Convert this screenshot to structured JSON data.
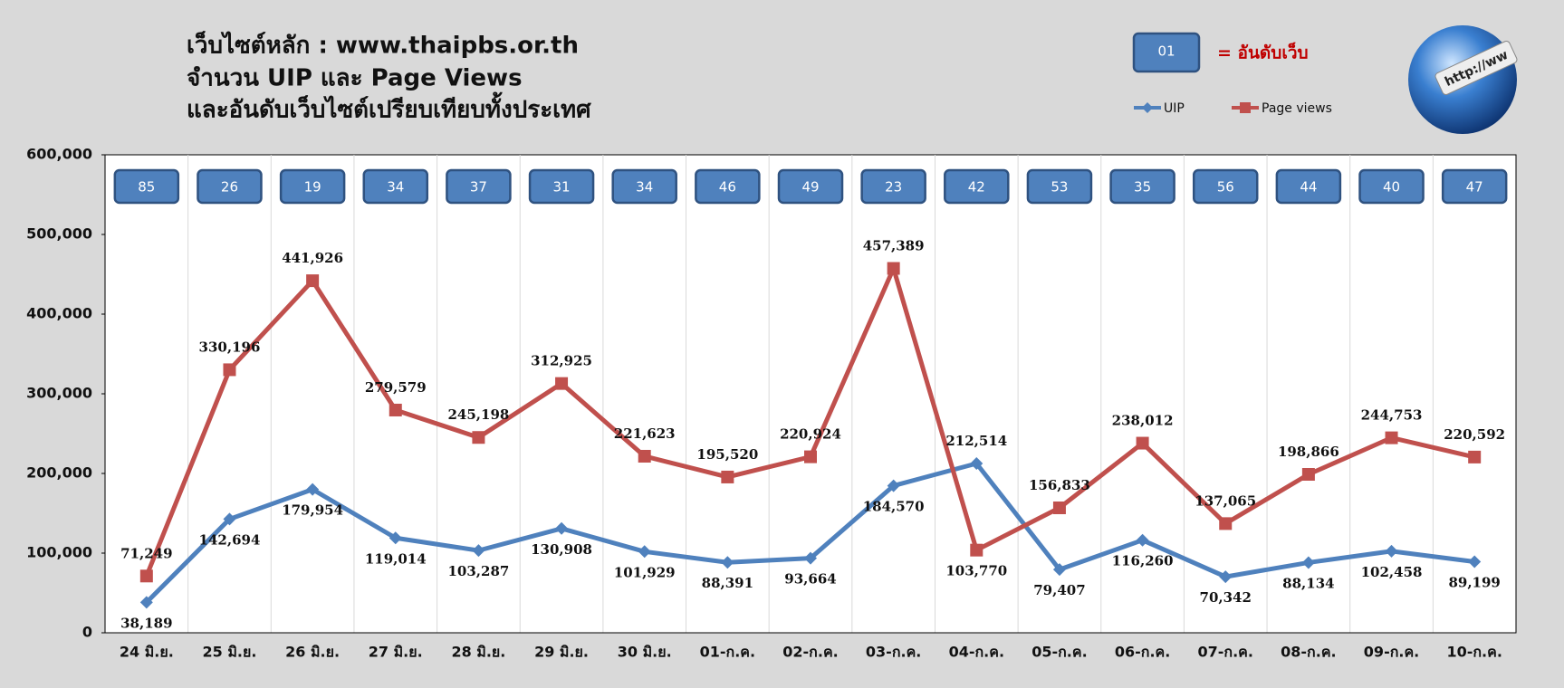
{
  "chart_data": {
    "type": "line",
    "title": [
      "เว็บไซต์หลัก : www.thaipbs.or.th",
      "จำนวน UIP และ Page Views",
      "และอันดับเว็บไซต์เปรียบเทียบทั้งประเทศ"
    ],
    "categories": [
      "24 มิ.ย.",
      "25 มิ.ย.",
      "26 มิ.ย.",
      "27 มิ.ย.",
      "28 มิ.ย.",
      "29 มิ.ย.",
      "30 มิ.ย.",
      "01-ก.ค.",
      "02-ก.ค.",
      "03-ก.ค.",
      "04-ก.ค.",
      "05-ก.ค.",
      "06-ก.ค.",
      "07-ก.ค.",
      "08-ก.ค.",
      "09-ก.ค.",
      "10-ก.ค."
    ],
    "series": [
      {
        "name": "UIP",
        "color": "#4f81bd",
        "marker": "diamond",
        "values": [
          38189,
          142694,
          179954,
          119014,
          103287,
          130908,
          101929,
          88391,
          93664,
          184570,
          212514,
          79407,
          116260,
          70342,
          88134,
          102458,
          89199
        ],
        "value_labels": [
          "38,189",
          "142,694",
          "179,954",
          "119,014",
          "103,287",
          "130,908",
          "101,929",
          "88,391",
          "93,664",
          "184,570",
          "212,514",
          "79,407",
          "116,260",
          "70,342",
          "88,134",
          "102,458",
          "89,199"
        ]
      },
      {
        "name": "Page views",
        "color": "#c0504d",
        "marker": "square",
        "values": [
          71249,
          330196,
          441926,
          279579,
          245198,
          312925,
          221623,
          195520,
          220924,
          457389,
          103770,
          156833,
          238012,
          137065,
          198866,
          244753,
          220592
        ],
        "value_labels": [
          "71,249",
          "330,196",
          "441,926",
          "279,579",
          "245,198",
          "312,925",
          "221,623",
          "195,520",
          "220,924",
          "457,389",
          "103,770",
          "156,833",
          "238,012",
          "137,065",
          "198,866",
          "244,753",
          "220,592"
        ]
      }
    ],
    "ranks": [
      85,
      26,
      19,
      34,
      37,
      31,
      34,
      46,
      49,
      23,
      42,
      53,
      35,
      56,
      44,
      40,
      47
    ],
    "rank_legend": {
      "sample": "01",
      "label": "= อันดับเว็บ"
    },
    "rank_color": "#4f81bd",
    "ylim": [
      0,
      600000
    ],
    "yticks": [
      0,
      {
        "value": 100000,
        "label": "100,000"
      },
      {
        "value": 200000,
        "label": "200,000"
      },
      {
        "value": 300000,
        "label": "300,000"
      },
      {
        "value": 400000,
        "label": "400,000"
      },
      {
        "value": 500000,
        "label": "500,000"
      },
      {
        "value": 600000,
        "label": "600,000"
      }
    ]
  }
}
